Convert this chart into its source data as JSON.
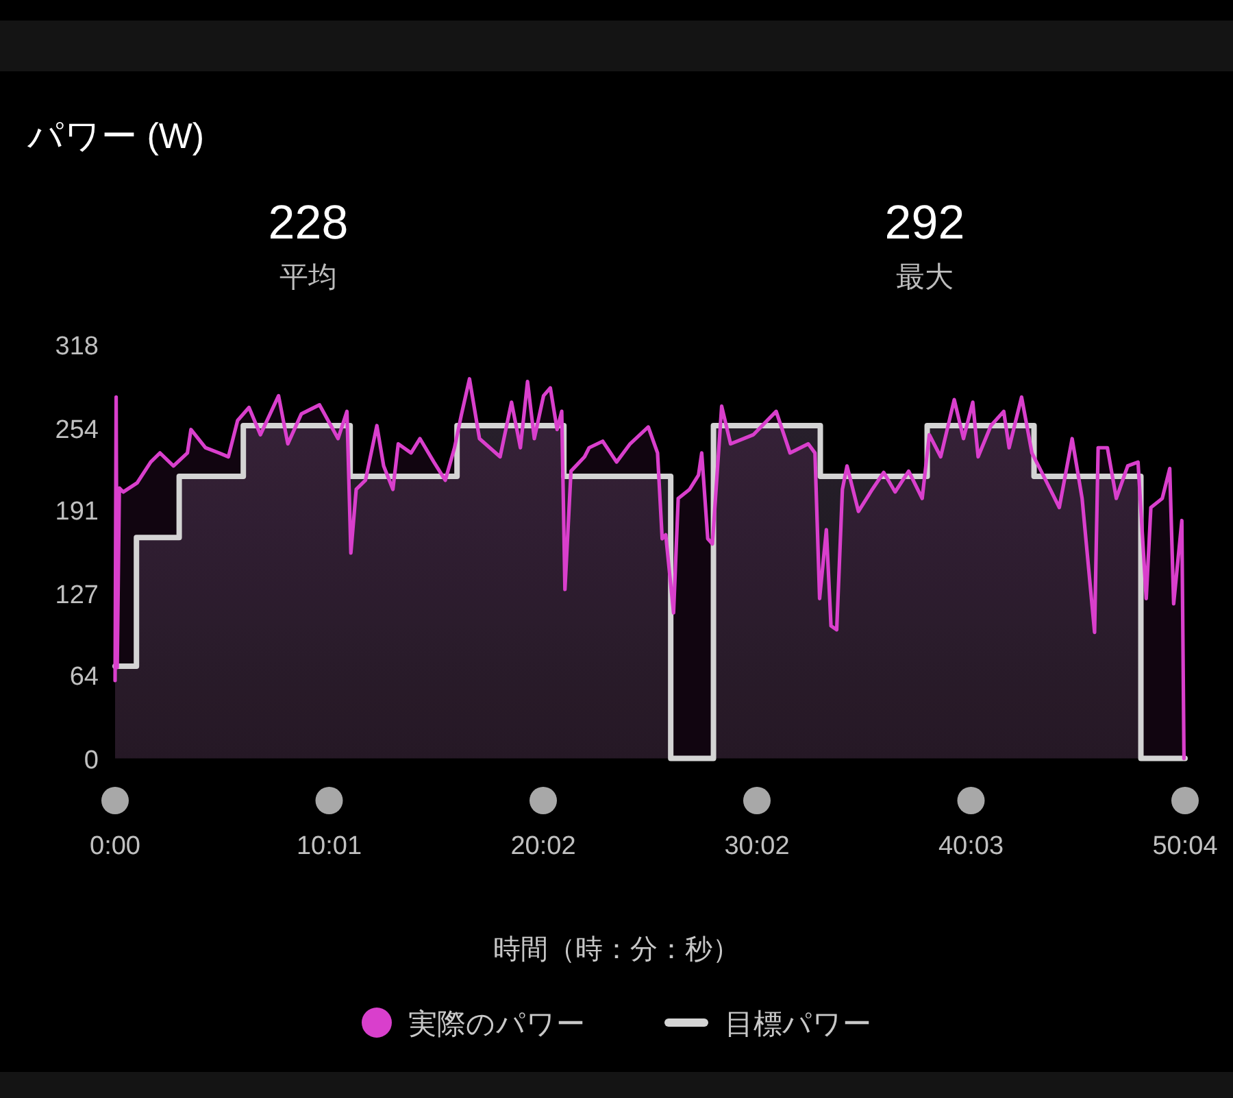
{
  "chart_data": {
    "type": "area",
    "title": "パワー (W)",
    "annotations": [
      "228",
      "平均",
      "292",
      "最大"
    ],
    "xlabel": "時間（時：分：秒）",
    "xlim": [
      0,
      3004
    ],
    "xticks": [
      {
        "value": 0,
        "label": "0:00"
      },
      {
        "value": 601,
        "label": "10:01"
      },
      {
        "value": 1202,
        "label": "20:02"
      },
      {
        "value": 1802,
        "label": "30:02"
      },
      {
        "value": 2403,
        "label": "40:03"
      },
      {
        "value": 3004,
        "label": "50:04"
      }
    ],
    "ylim": [
      0,
      318
    ],
    "yticks": [
      0,
      64,
      127,
      191,
      254,
      318
    ],
    "legend": "bottom",
    "series": [
      {
        "name": "実際のパワー",
        "color": "#d93fcc",
        "x": [
          0,
          3,
          6,
          12,
          23,
          62,
          100,
          126,
          164,
          203,
          213,
          254,
          292,
          318,
          344,
          376,
          408,
          459,
          485,
          523,
          574,
          626,
          651,
          662,
          677,
          703,
          735,
          754,
          780,
          795,
          831,
          856,
          895,
          927,
          953,
          972,
          995,
          1023,
          1081,
          1113,
          1138,
          1158,
          1177,
          1203,
          1222,
          1241,
          1254,
          1263,
          1280,
          1318,
          1331,
          1369,
          1408,
          1446,
          1497,
          1523,
          1536,
          1546,
          1568,
          1581,
          1613,
          1638,
          1647,
          1664,
          1677,
          1703,
          1728,
          1792,
          1856,
          1895,
          1946,
          1965,
          1978,
          1997,
          2010,
          2026,
          2042,
          2055,
          2087,
          2126,
          2158,
          2190,
          2228,
          2266,
          2286,
          2318,
          2356,
          2382,
          2408,
          2423,
          2459,
          2495,
          2510,
          2545,
          2574,
          2600,
          2651,
          2687,
          2715,
          2750,
          2760,
          2786,
          2811,
          2843,
          2872,
          2895,
          2908,
          2940,
          2961,
          2972,
          2995,
          3001
        ],
        "values": [
          60,
          278,
          70,
          208,
          205,
          212,
          228,
          235,
          225,
          235,
          253,
          239,
          235,
          232,
          260,
          270,
          249,
          279,
          242,
          265,
          272,
          246,
          267,
          158,
          207,
          214,
          256,
          225,
          207,
          242,
          235,
          246,
          228,
          214,
          239,
          264,
          292,
          246,
          232,
          274,
          239,
          290,
          246,
          279,
          285,
          253,
          267,
          130,
          221,
          232,
          239,
          244,
          228,
          242,
          255,
          235,
          169,
          172,
          112,
          200,
          207,
          218,
          235,
          169,
          165,
          271,
          242,
          249,
          267,
          235,
          242,
          235,
          123,
          176,
          102,
          99,
          207,
          225,
          190,
          207,
          220,
          205,
          221,
          200,
          249,
          232,
          276,
          246,
          274,
          232,
          256,
          267,
          239,
          278,
          235,
          221,
          193,
          246,
          200,
          97,
          239,
          239,
          200,
          225,
          228,
          123,
          193,
          200,
          223,
          119,
          183,
          0
        ]
      },
      {
        "name": "目標パワー",
        "type": "step",
        "color": "#d4d4d4",
        "x": [
          0,
          60,
          180,
          360,
          660,
          960,
          1260,
          1560,
          1680,
          1980,
          2280,
          2580,
          2880,
          3004
        ],
        "values": [
          71,
          170,
          217,
          256,
          217,
          256,
          217,
          0,
          256,
          217,
          256,
          217,
          0,
          0
        ]
      }
    ]
  }
}
